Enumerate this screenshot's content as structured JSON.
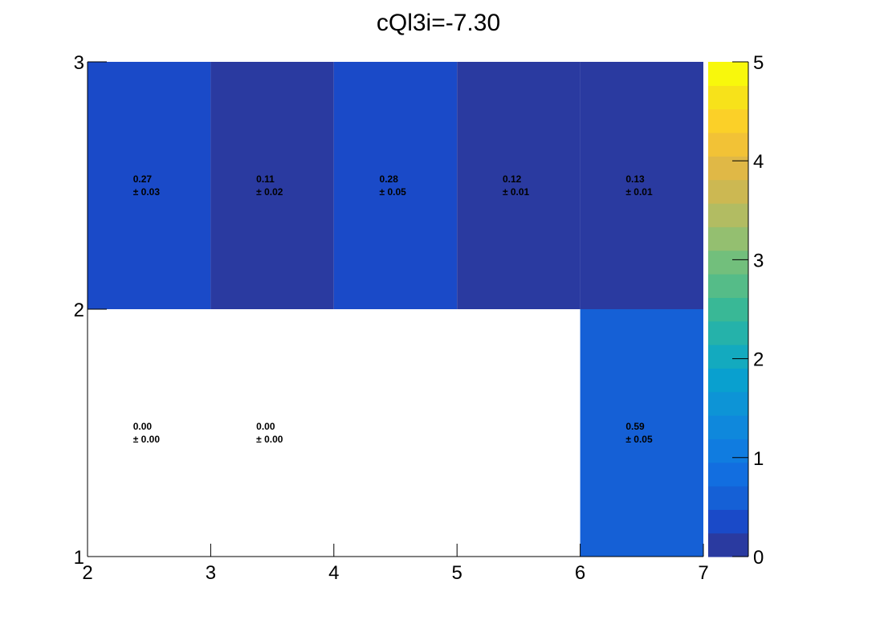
{
  "chart_data": {
    "type": "heatmap",
    "title": "cQl3i=-7.30",
    "xlabel": "",
    "ylabel": "",
    "x_edges": [
      2,
      3,
      4,
      5,
      6,
      7
    ],
    "y_edges": [
      1,
      2,
      3
    ],
    "xlim": [
      2,
      7
    ],
    "ylim": [
      1,
      3
    ],
    "x_tick_labels": [
      "2",
      "3",
      "4",
      "5",
      "6",
      "7"
    ],
    "y_tick_labels": [
      "1",
      "2",
      "3"
    ],
    "zlim": [
      0,
      5
    ],
    "z_tick_labels": [
      "0",
      "1",
      "2",
      "3",
      "4",
      "5"
    ],
    "grid": false,
    "cells": [
      {
        "x": [
          2,
          3
        ],
        "y": [
          2,
          3
        ],
        "value": 0.27,
        "error": 0.03,
        "label": "0.27",
        "error_label": "± 0.03"
      },
      {
        "x": [
          3,
          4
        ],
        "y": [
          2,
          3
        ],
        "value": 0.11,
        "error": 0.02,
        "label": "0.11",
        "error_label": "± 0.02"
      },
      {
        "x": [
          4,
          5
        ],
        "y": [
          2,
          3
        ],
        "value": 0.28,
        "error": 0.05,
        "label": "0.28",
        "error_label": "± 0.05"
      },
      {
        "x": [
          5,
          6
        ],
        "y": [
          2,
          3
        ],
        "value": 0.12,
        "error": 0.01,
        "label": "0.12",
        "error_label": "± 0.01"
      },
      {
        "x": [
          6,
          7
        ],
        "y": [
          2,
          3
        ],
        "value": 0.13,
        "error": 0.01,
        "label": "0.13",
        "error_label": "± 0.01"
      },
      {
        "x": [
          2,
          3
        ],
        "y": [
          1,
          2
        ],
        "value": 0.0,
        "error": 0.0,
        "label": "0.00",
        "error_label": "± 0.00"
      },
      {
        "x": [
          3,
          4
        ],
        "y": [
          1,
          2
        ],
        "value": 0.0,
        "error": 0.0,
        "label": "0.00",
        "error_label": "± 0.00"
      },
      {
        "x": [
          6,
          7
        ],
        "y": [
          1,
          2
        ],
        "value": 0.59,
        "error": 0.05,
        "label": "0.59",
        "error_label": "± 0.05"
      }
    ],
    "palette": [
      "#2a3aa0",
      "#1a4ac8",
      "#1560d6",
      "#126ee0",
      "#107ce0",
      "#0f88dc",
      "#0d94d6",
      "#09a0cf",
      "#13aabf",
      "#25b2aa",
      "#39b896",
      "#55bc88",
      "#72bf7c",
      "#94bf70",
      "#b2bc62",
      "#ccb852",
      "#e0b846",
      "#f2c236",
      "#fbd028",
      "#f7e21a",
      "#f8f80c"
    ]
  }
}
